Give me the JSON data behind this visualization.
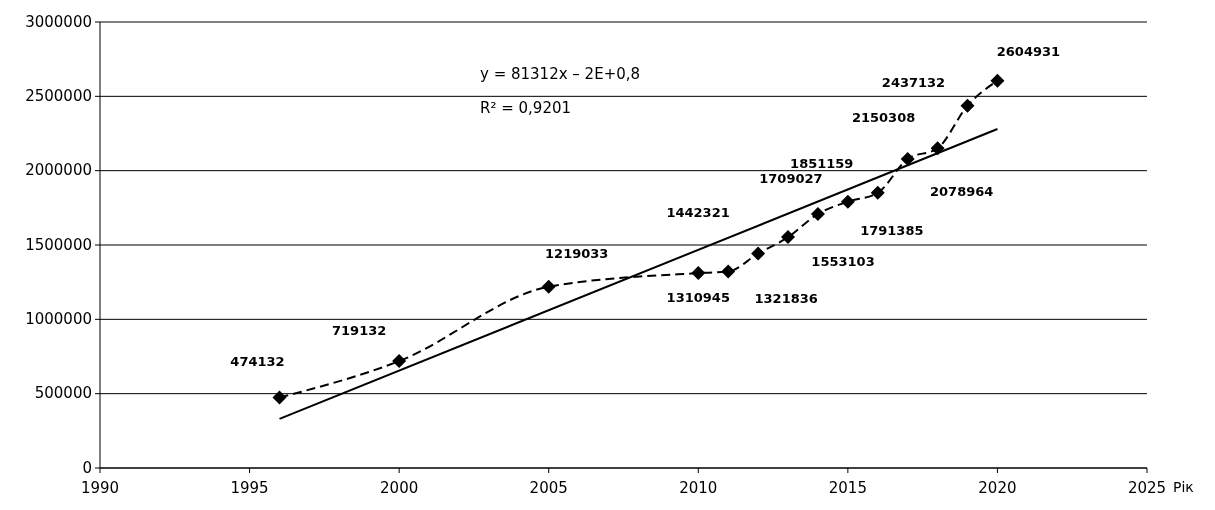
{
  "chart_data": {
    "type": "line",
    "xlabel": "Рік",
    "xlim": [
      1990,
      2025
    ],
    "xticks": [
      1990,
      1995,
      2000,
      2005,
      2010,
      2015,
      2020,
      2025
    ],
    "ylim": [
      0,
      3000000
    ],
    "yticks": [
      0,
      500000,
      1000000,
      1500000,
      2000000,
      2500000,
      3000000
    ],
    "grid": "y",
    "series": [
      {
        "color": "#000000",
        "marker": "diamond",
        "line_style": "dashed",
        "x": [
          1996,
          2000,
          2005,
          2010,
          2011,
          2012,
          2013,
          2014,
          2015,
          2016,
          2017,
          2018,
          2019,
          2020
        ],
        "values": [
          474132,
          719132,
          1219033,
          1310945,
          1321836,
          1442321,
          1553103,
          1709027,
          1791385,
          1851159,
          2078964,
          2150308,
          2437132,
          2604931
        ],
        "value_labels": [
          "474132",
          "719132",
          "1219033",
          "1310945",
          "1321836",
          "1442321",
          "1553103",
          "1709027",
          "1791385",
          "1851159",
          "2078964",
          "2150308",
          "2437132",
          "2604931"
        ]
      },
      {
        "color": "#000000",
        "marker": "none",
        "line_style": "solid",
        "x": [
          1996,
          2020
        ],
        "values": [
          330000,
          2280000
        ]
      }
    ],
    "annotations": [
      "y = 81312x – 2E+0,8",
      "R² = 0,9201"
    ]
  }
}
